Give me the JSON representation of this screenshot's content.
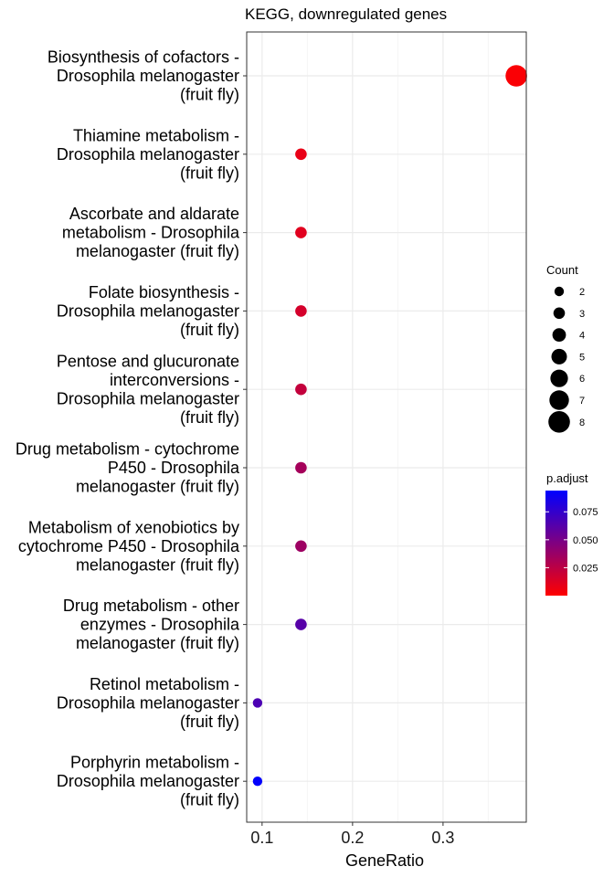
{
  "chart_data": {
    "type": "scatter",
    "title": "KEGG, downregulated genes",
    "xlabel": "GeneRatio",
    "ylabel": "",
    "xlim": [
      0.083,
      0.392
    ],
    "xticks": [
      0.1,
      0.2,
      0.3
    ],
    "xtick_labels": [
      "0.1",
      "0.2",
      "0.3"
    ],
    "grid": true,
    "categories": [
      "Biosynthesis of cofactors - Drosophila melanogaster (fruit fly)",
      "Thiamine metabolism - Drosophila melanogaster (fruit fly)",
      "Ascorbate and aldarate metabolism - Drosophila melanogaster (fruit fly)",
      "Folate biosynthesis - Drosophila melanogaster (fruit fly)",
      "Pentose and glucuronate interconversions - Drosophila melanogaster (fruit fly)",
      "Drug metabolism - cytochrome P450 - Drosophila melanogaster (fruit fly)",
      "Metabolism of xenobiotics by cytochrome P450 - Drosophila melanogaster (fruit fly)",
      "Drug metabolism - other enzymes - Drosophila melanogaster (fruit fly)",
      "Retinol metabolism - Drosophila melanogaster (fruit fly)",
      "Porphyrin metabolism - Drosophila melanogaster (fruit fly)"
    ],
    "category_lines": [
      [
        "Biosynthesis of cofactors -",
        "Drosophila melanogaster",
        "(fruit fly)"
      ],
      [
        "Thiamine metabolism -",
        "Drosophila melanogaster",
        "(fruit fly)"
      ],
      [
        "Ascorbate and aldarate",
        "metabolism - Drosophila",
        "melanogaster (fruit fly)"
      ],
      [
        "Folate biosynthesis -",
        "Drosophila melanogaster",
        "(fruit fly)"
      ],
      [
        "Pentose and glucuronate",
        "interconversions -",
        "Drosophila melanogaster",
        "(fruit fly)"
      ],
      [
        "Drug metabolism - cytochrome",
        "P450 - Drosophila",
        "melanogaster (fruit fly)"
      ],
      [
        "Metabolism of xenobiotics by",
        "cytochrome P450 - Drosophila",
        "melanogaster (fruit fly)"
      ],
      [
        "Drug metabolism - other",
        "enzymes - Drosophila",
        "melanogaster (fruit fly)"
      ],
      [
        "Retinol metabolism -",
        "Drosophila melanogaster",
        "(fruit fly)"
      ],
      [
        "Porphyrin metabolism -",
        "Drosophila melanogaster",
        "(fruit fly)"
      ]
    ],
    "points": [
      {
        "gene_ratio": 0.381,
        "count": 8,
        "p_adjust": 0.002
      },
      {
        "gene_ratio": 0.143,
        "count": 3,
        "p_adjust": 0.008
      },
      {
        "gene_ratio": 0.143,
        "count": 3,
        "p_adjust": 0.011
      },
      {
        "gene_ratio": 0.143,
        "count": 3,
        "p_adjust": 0.016
      },
      {
        "gene_ratio": 0.143,
        "count": 3,
        "p_adjust": 0.022
      },
      {
        "gene_ratio": 0.143,
        "count": 3,
        "p_adjust": 0.033
      },
      {
        "gene_ratio": 0.143,
        "count": 3,
        "p_adjust": 0.036
      },
      {
        "gene_ratio": 0.143,
        "count": 3,
        "p_adjust": 0.062
      },
      {
        "gene_ratio": 0.095,
        "count": 2,
        "p_adjust": 0.066
      },
      {
        "gene_ratio": 0.095,
        "count": 2,
        "p_adjust": 0.093
      }
    ],
    "size_legend": {
      "title": "Count",
      "values": [
        2,
        3,
        4,
        5,
        6,
        7,
        8
      ],
      "labels": [
        "2",
        "3",
        "4",
        "5",
        "6",
        "7",
        "8"
      ]
    },
    "color_legend": {
      "title": "p.adjust",
      "min": 0.0,
      "max": 0.094,
      "ticks": [
        0.025,
        0.05,
        0.075
      ],
      "tick_labels": [
        "0.025",
        "0.050",
        "0.075"
      ],
      "low_color": "#ff0000",
      "high_color": "#0000ff"
    },
    "colors": {
      "panel_border": "#333333",
      "grid_major": "#ebebeb",
      "grid_minor": "#f5f5f5",
      "text": "#000000",
      "axis_text": "#1a1a1a"
    }
  }
}
